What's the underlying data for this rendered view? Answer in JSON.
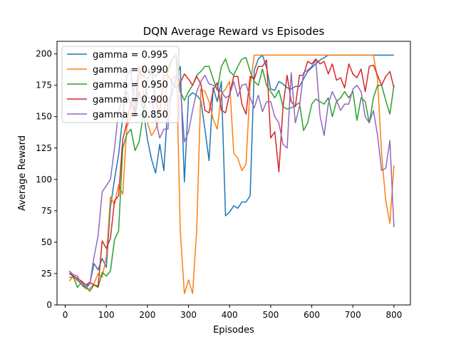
{
  "chart_data": {
    "type": "line",
    "title": "DQN Average Reward vs Episodes",
    "xlabel": "Episodes",
    "ylabel": "Average Reward",
    "xlim": [
      -20,
      840
    ],
    "ylim": [
      0,
      210
    ],
    "xticks": [
      0,
      100,
      200,
      300,
      400,
      500,
      600,
      700,
      800
    ],
    "yticks": [
      0,
      25,
      50,
      75,
      100,
      125,
      150,
      175,
      200
    ],
    "grid": false,
    "legend_position": "top-left",
    "x": [
      10,
      20,
      30,
      40,
      50,
      60,
      70,
      80,
      90,
      100,
      110,
      120,
      130,
      140,
      150,
      160,
      170,
      180,
      190,
      200,
      210,
      220,
      230,
      240,
      250,
      260,
      270,
      280,
      290,
      300,
      310,
      320,
      330,
      340,
      350,
      360,
      370,
      380,
      390,
      400,
      410,
      420,
      430,
      440,
      450,
      460,
      470,
      480,
      490,
      500,
      510,
      520,
      530,
      540,
      550,
      560,
      570,
      580,
      590,
      600,
      610,
      620,
      630,
      640,
      650,
      660,
      670,
      680,
      690,
      700,
      710,
      720,
      730,
      740,
      750,
      760,
      770,
      780,
      790,
      800
    ],
    "series": [
      {
        "name": "gamma = 0.995",
        "color": "#1f77b4",
        "values": [
          27,
          22,
          20,
          16,
          13,
          17,
          33,
          28,
          37,
          30,
          78,
          100,
          120,
          150,
          182,
          188,
          150,
          170,
          155,
          132,
          116,
          105,
          128,
          107,
          162,
          168,
          181,
          190,
          98,
          166,
          169,
          167,
          163,
          140,
          115,
          173,
          162,
          178,
          71,
          74,
          79,
          77,
          82,
          82,
          87,
          187,
          196,
          199,
          189,
          172,
          171,
          178,
          176,
          173,
          172,
          174,
          174,
          180,
          186,
          189,
          192,
          195,
          197,
          199,
          199,
          199,
          199,
          199,
          199,
          199,
          199,
          199,
          199,
          199,
          199,
          199,
          199,
          199,
          199,
          199
        ]
      },
      {
        "name": "gamma = 0.990",
        "color": "#ff7f0e",
        "values": [
          19,
          23,
          19,
          19,
          13,
          13,
          17,
          25,
          22,
          38,
          86,
          80,
          96,
          88,
          142,
          150,
          162,
          190,
          170,
          145,
          135,
          140,
          150,
          150,
          188,
          196,
          199,
          59,
          9,
          20,
          9,
          60,
          172,
          170,
          162,
          148,
          140,
          168,
          172,
          178,
          121,
          117,
          107,
          112,
          175,
          199,
          199,
          199,
          199,
          199,
          199,
          199,
          199,
          199,
          199,
          199,
          199,
          199,
          199,
          199,
          199,
          199,
          199,
          199,
          199,
          199,
          199,
          199,
          199,
          199,
          199,
          199,
          199,
          199,
          199,
          180,
          120,
          83,
          65,
          111
        ]
      },
      {
        "name": "gamma = 0.950",
        "color": "#2ca02c",
        "values": [
          22,
          22,
          14,
          18,
          14,
          11,
          16,
          14,
          26,
          23,
          27,
          52,
          59,
          125,
          136,
          140,
          123,
          130,
          152,
          180,
          186,
          182,
          185,
          185,
          185,
          196,
          199,
          170,
          163,
          170,
          175,
          183,
          186,
          190,
          190,
          180,
          171,
          190,
          196,
          186,
          183,
          190,
          196,
          197,
          186,
          178,
          175,
          188,
          175,
          170,
          165,
          171,
          158,
          156,
          157,
          159,
          161,
          139,
          145,
          160,
          164,
          162,
          160,
          165,
          150,
          162,
          165,
          170,
          165,
          170,
          147,
          165,
          162,
          145,
          165,
          175,
          175,
          163,
          152,
          175
        ]
      },
      {
        "name": "gamma = 0.900",
        "color": "#d62728",
        "values": [
          25,
          23,
          21,
          19,
          16,
          18,
          16,
          15,
          51,
          45,
          53,
          83,
          87,
          132,
          145,
          162,
          153,
          186,
          182,
          187,
          188,
          163,
          153,
          183,
          183,
          177,
          173,
          177,
          184,
          180,
          175,
          182,
          176,
          155,
          153,
          171,
          177,
          155,
          153,
          168,
          182,
          182,
          160,
          152,
          182,
          180,
          190,
          190,
          195,
          133,
          138,
          106,
          158,
          183,
          162,
          158,
          183,
          183,
          194,
          192,
          196,
          192,
          194,
          184,
          192,
          179,
          181,
          173,
          192,
          184,
          181,
          188,
          170,
          190,
          191,
          183,
          175,
          182,
          186,
          173
        ]
      },
      {
        "name": "gamma = 0.850",
        "color": "#9467bd",
        "values": [
          27,
          24,
          23,
          16,
          15,
          17,
          38,
          55,
          90,
          95,
          100,
          125,
          155,
          163,
          170,
          157,
          175,
          185,
          190,
          165,
          164,
          148,
          133,
          140,
          140,
          180,
          183,
          175,
          130,
          138,
          155,
          170,
          178,
          183,
          176,
          175,
          173,
          170,
          165,
          167,
          178,
          166,
          175,
          176,
          165,
          157,
          167,
          154,
          162,
          162,
          150,
          145,
          128,
          125,
          185,
          145,
          158,
          185,
          187,
          190,
          195,
          151,
          135,
          160,
          170,
          163,
          155,
          160,
          160,
          172,
          175,
          170,
          150,
          145,
          155,
          135,
          107,
          109,
          131,
          62
        ]
      }
    ]
  }
}
